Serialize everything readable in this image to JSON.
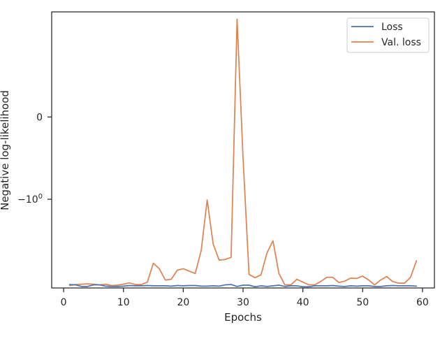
{
  "chart_data": {
    "type": "line",
    "xlabel": "Epochs",
    "ylabel": "Negative log-likelihood",
    "xlim": [
      -2,
      62
    ],
    "x_ticks": [
      {
        "value": 0,
        "label": "0"
      },
      {
        "value": 10,
        "label": "10"
      },
      {
        "value": 20,
        "label": "20"
      },
      {
        "value": 30,
        "label": "30"
      },
      {
        "value": 40,
        "label": "40"
      },
      {
        "value": 50,
        "label": "50"
      },
      {
        "value": 60,
        "label": "60"
      }
    ],
    "y_scale": "symlog",
    "y_linthresh": 1,
    "ylim": [
      -12,
      1.9
    ],
    "y_ticks": [
      {
        "value": 0,
        "label": "0",
        "sup": ""
      },
      {
        "value": -1,
        "label": "−10",
        "sup": "0"
      }
    ],
    "grid": false,
    "legend_position": "top-right",
    "x": [
      1,
      2,
      3,
      4,
      5,
      6,
      7,
      8,
      9,
      10,
      11,
      12,
      13,
      14,
      15,
      16,
      17,
      18,
      19,
      20,
      21,
      22,
      23,
      24,
      25,
      26,
      27,
      28,
      29,
      30,
      31,
      32,
      33,
      34,
      35,
      36,
      37,
      38,
      39,
      40,
      41,
      42,
      43,
      44,
      45,
      46,
      47,
      48,
      49,
      50,
      51,
      52,
      53,
      54,
      55,
      56,
      57,
      58,
      59
    ],
    "series": [
      {
        "name": "Loss",
        "color": "#4c72b0",
        "values": [
          -10.9,
          -11.0,
          -11.5,
          -11.5,
          -11.0,
          -11.0,
          -11.4,
          -11.5,
          -11.5,
          -11.4,
          -11.2,
          -11.3,
          -11.3,
          -11.2,
          -11.3,
          -11.3,
          -11.3,
          -11.4,
          -11.2,
          -11.3,
          -11.2,
          -11.2,
          -11.4,
          -11.4,
          -11.3,
          -11.4,
          -11.0,
          -10.9,
          -11.5,
          -11.1,
          -11.1,
          -11.6,
          -11.3,
          -11.5,
          -11.3,
          -11.1,
          -11.5,
          -11.3,
          -11.3,
          -11.6,
          -11.6,
          -11.3,
          -11.3,
          -11.3,
          -11.2,
          -11.4,
          -11.5,
          -11.3,
          -11.4,
          -11.3,
          -11.3,
          -11.5,
          -11.5,
          -11.3,
          -11.2,
          -11.3,
          -11.3,
          -11.3,
          -11.4
        ]
      },
      {
        "name": "Val. loss",
        "color": "#dd8452",
        "values": [
          -11.2,
          -10.9,
          -10.8,
          -10.7,
          -10.8,
          -11.0,
          -10.8,
          -11.2,
          -11.1,
          -10.8,
          -10.4,
          -10.9,
          -10.9,
          -10.2,
          -6.0,
          -7.0,
          -9.6,
          -9.4,
          -7.3,
          -7.0,
          -7.5,
          -8.0,
          -4.2,
          -1.02,
          -3.5,
          -5.5,
          -5.4,
          -5.1,
          1.55,
          -0.5,
          -8.2,
          -9.0,
          -8.3,
          -4.5,
          -3.2,
          -8.0,
          -11.0,
          -11.0,
          -9.4,
          -10.2,
          -11.0,
          -11.0,
          -10.0,
          -8.9,
          -8.9,
          -10.3,
          -9.9,
          -9.1,
          -9.2,
          -8.6,
          -9.6,
          -11.0,
          -9.6,
          -8.7,
          -10.0,
          -10.5,
          -10.5,
          -8.9,
          -5.6
        ]
      }
    ]
  }
}
